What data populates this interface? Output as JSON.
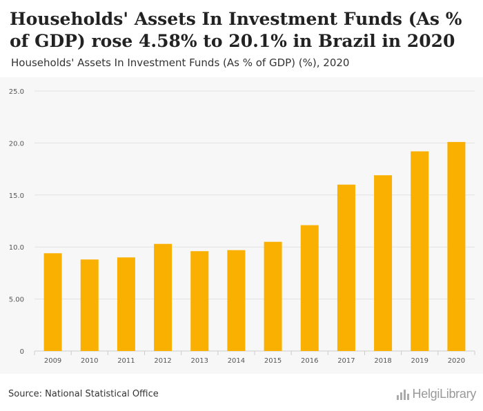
{
  "header": {
    "title": "Households' Assets In Investment Funds (As % of GDP) rose 4.58% to 20.1% in Brazil in 2020",
    "subtitle": "Households' Assets In Investment Funds (As % of GDP) (%), 2020"
  },
  "footer": {
    "source": "Source: National Statistical Office",
    "logo_text": "HelgiLibrary"
  },
  "colors": {
    "bar": "#f9b000",
    "grid": "#e2e2e2",
    "plot_bg": "#f7f7f7"
  },
  "chart_data": {
    "type": "bar",
    "title": "Households' Assets In Investment Funds (As % of GDP) (%), 2020",
    "categories": [
      "2009",
      "2010",
      "2011",
      "2012",
      "2013",
      "2014",
      "2015",
      "2016",
      "2017",
      "2018",
      "2019",
      "2020"
    ],
    "values": [
      9.4,
      8.8,
      9.0,
      10.3,
      9.6,
      9.7,
      10.5,
      12.1,
      16.0,
      16.9,
      19.2,
      20.1
    ],
    "ylim": [
      0,
      25
    ],
    "yticks": [
      0,
      5,
      10,
      15,
      20,
      25
    ],
    "ytick_labels": [
      "0",
      "5.00",
      "10.0",
      "15.0",
      "20.0",
      "25.0"
    ],
    "xlabel": "",
    "ylabel": "",
    "grid": true
  }
}
